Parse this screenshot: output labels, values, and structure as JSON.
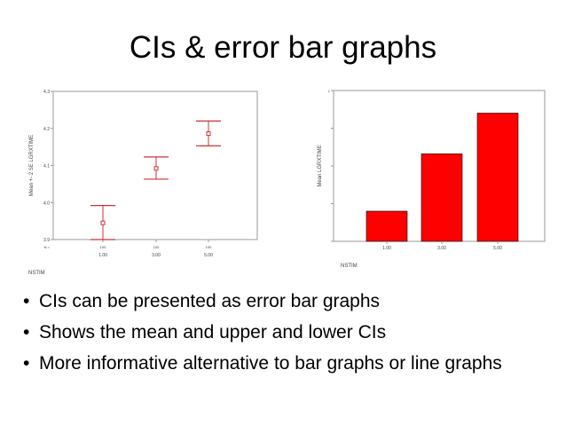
{
  "slide": {
    "title": "CIs & error bar graphs",
    "bullets": [
      "CIs can be presented as error bar graphs",
      "Shows the mean and upper and lower CIs",
      "More informative alternative to bar graphs or line graphs"
    ],
    "bullet_glyph": "•"
  },
  "chart_data": [
    {
      "type": "scatter",
      "subtype": "error-bar",
      "title": "",
      "xlabel": "NSTIM",
      "ylabel": "Mean +- 2 SE LGRXTIME",
      "categories": [
        "1.00",
        "3.00",
        "5.00"
      ],
      "n_labels": [
        "N =",
        "100",
        "100",
        "100"
      ],
      "means": [
        3.945,
        4.092,
        4.186
      ],
      "lower": [
        3.9,
        4.063,
        4.153
      ],
      "upper": [
        3.992,
        4.123,
        4.22
      ],
      "ylim": [
        3.9,
        4.3
      ],
      "yticks": [
        "4.3",
        "4.2",
        "4.1",
        "4.0",
        "3.9"
      ],
      "color": "#cc3333",
      "grid": false
    },
    {
      "type": "bar",
      "title": "",
      "xlabel": "NSTIM",
      "ylabel": "Mean LGRXTIME",
      "categories": [
        "1.00",
        "3.00",
        "5.00"
      ],
      "values": [
        0.2,
        0.58,
        0.85
      ],
      "ylim": [
        0,
        1
      ],
      "yticks": [
        "1",
        "",
        "",
        "",
        ""
      ],
      "color": "#ff0000",
      "grid": false
    }
  ]
}
